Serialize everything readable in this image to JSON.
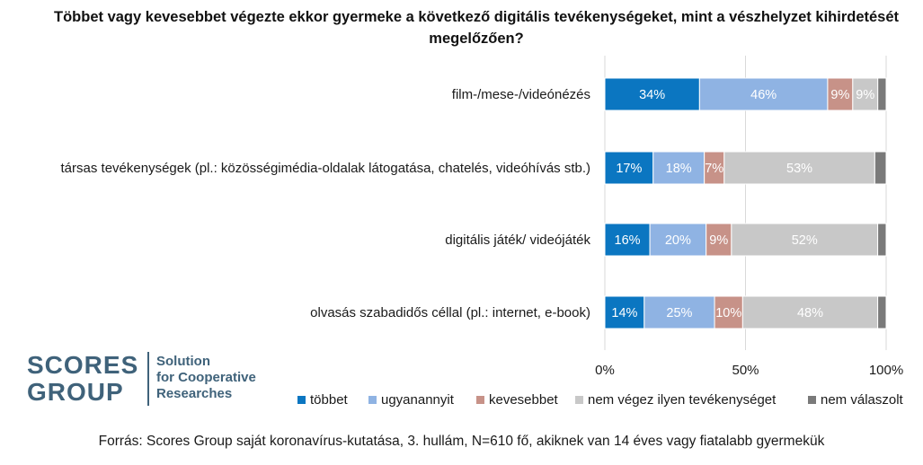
{
  "title": "Többet vagy kevesebbet végezte ekkor gyermeke a következő digitális tevékenységeket, mint a vészhelyzet kihirdetését megelőzően?",
  "source": "Forrás: Scores Group saját koronavírus-kutatása, 3. hullám, N=610 fő,  akiknek van 14 éves vagy fiatalabb gyermekük",
  "logo": {
    "word_top": "SCORES",
    "word_bottom": "GROUP",
    "tagline": [
      "Solution",
      "for Cooperative",
      "Researches"
    ],
    "colors": {
      "primary": "#3f627a",
      "accent": "#0f7cc0"
    }
  },
  "chart_data": {
    "type": "bar",
    "orientation": "horizontal",
    "stacked": "percent",
    "categories": [
      "film-/mese-/videónézés",
      "társas tevékenységek (pl.: közösségimédia-oldalak látogatása, chatelés, videóhívás stb.)",
      "digitális játék/ videójáték",
      "olvasás szabadidős céllal (pl.: internet, e-book)"
    ],
    "series": [
      {
        "name": "többet",
        "color": "#0b76c1",
        "values": [
          34,
          17,
          16,
          14
        ],
        "labels": [
          "34%",
          "17%",
          "16%",
          "14%"
        ]
      },
      {
        "name": "ugyanannyit",
        "color": "#8fb3e3",
        "values": [
          46,
          18,
          20,
          25
        ],
        "labels": [
          "46%",
          "18%",
          "20%",
          "25%"
        ]
      },
      {
        "name": "kevesebbet",
        "color": "#c79288",
        "values": [
          9,
          7,
          9,
          10
        ],
        "labels": [
          "9%",
          "7%",
          "9%",
          "10%"
        ]
      },
      {
        "name": "nem végez ilyen tevékenységet",
        "color": "#c8c8c8",
        "values": [
          9,
          53,
          52,
          48
        ],
        "labels": [
          "9%",
          "53%",
          "52%",
          "48%"
        ]
      },
      {
        "name": "nem válaszolt",
        "color": "#7a7a7a",
        "values": [
          3,
          4,
          3,
          3
        ],
        "labels": [
          "",
          "",
          "",
          ""
        ]
      }
    ],
    "xlim": [
      0,
      100
    ],
    "xticks": [
      "0%",
      "50%",
      "100%"
    ],
    "xtick_values": [
      0,
      50,
      100
    ],
    "grid": true,
    "legend_position": "bottom"
  }
}
